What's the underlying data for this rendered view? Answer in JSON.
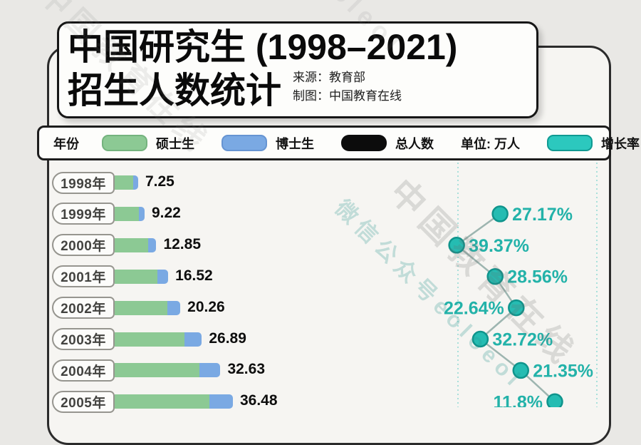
{
  "header": {
    "title_line1": "中国研究生 (1998–2021)",
    "title_line2": "招生人数统计",
    "source": "来源：教育部",
    "credit": "制图：中国教育在线"
  },
  "legend": {
    "year_label": "年份",
    "masters_label": "硕士生",
    "doctoral_label": "博士生",
    "total_label": "总人数",
    "unit_label": "单位: 万人",
    "growth_label": "增长率",
    "colors": {
      "masters": "#8cc994",
      "doctoral": "#7aa9e3",
      "total": "#0c0c0c",
      "growth": "#25bcb2"
    }
  },
  "chart_data": [
    {
      "type": "bar",
      "orientation": "horizontal",
      "title": "中国研究生 (1998–2021) 招生人数统计",
      "unit": "万人",
      "series_note": "每条横条为硕士生(绿)与博士生(蓝)堆叠，右侧数字为总人数；图片底部裁切于2005年行",
      "categories": [
        "1998年",
        "1999年",
        "2000年",
        "2001年",
        "2002年",
        "2003年",
        "2004年",
        "2005年"
      ],
      "values": [
        7.25,
        9.22,
        12.85,
        16.52,
        20.26,
        26.89,
        32.63,
        36.48
      ]
    },
    {
      "type": "line",
      "name": "增长率",
      "unit": "%",
      "legend_position": "top",
      "grid": "two vertical dashed teal guides",
      "categories": [
        "1999年",
        "2000年",
        "2001年",
        "2002年",
        "2003年",
        "2004年",
        "2005年"
      ],
      "values": [
        27.17,
        39.37,
        28.56,
        22.64,
        32.72,
        21.35,
        11.8
      ],
      "labels": [
        "27.17%",
        "39.37%",
        "28.56%",
        "22.64%",
        "32.72%",
        "21.35%",
        "11.8%"
      ],
      "label_sides": [
        "right",
        "right",
        "right",
        "left",
        "right",
        "right",
        "left"
      ]
    }
  ],
  "watermarks": [
    "中国教育在线",
    "微信公众号eoloeol",
    "中国教育在线",
    "eoleol"
  ]
}
